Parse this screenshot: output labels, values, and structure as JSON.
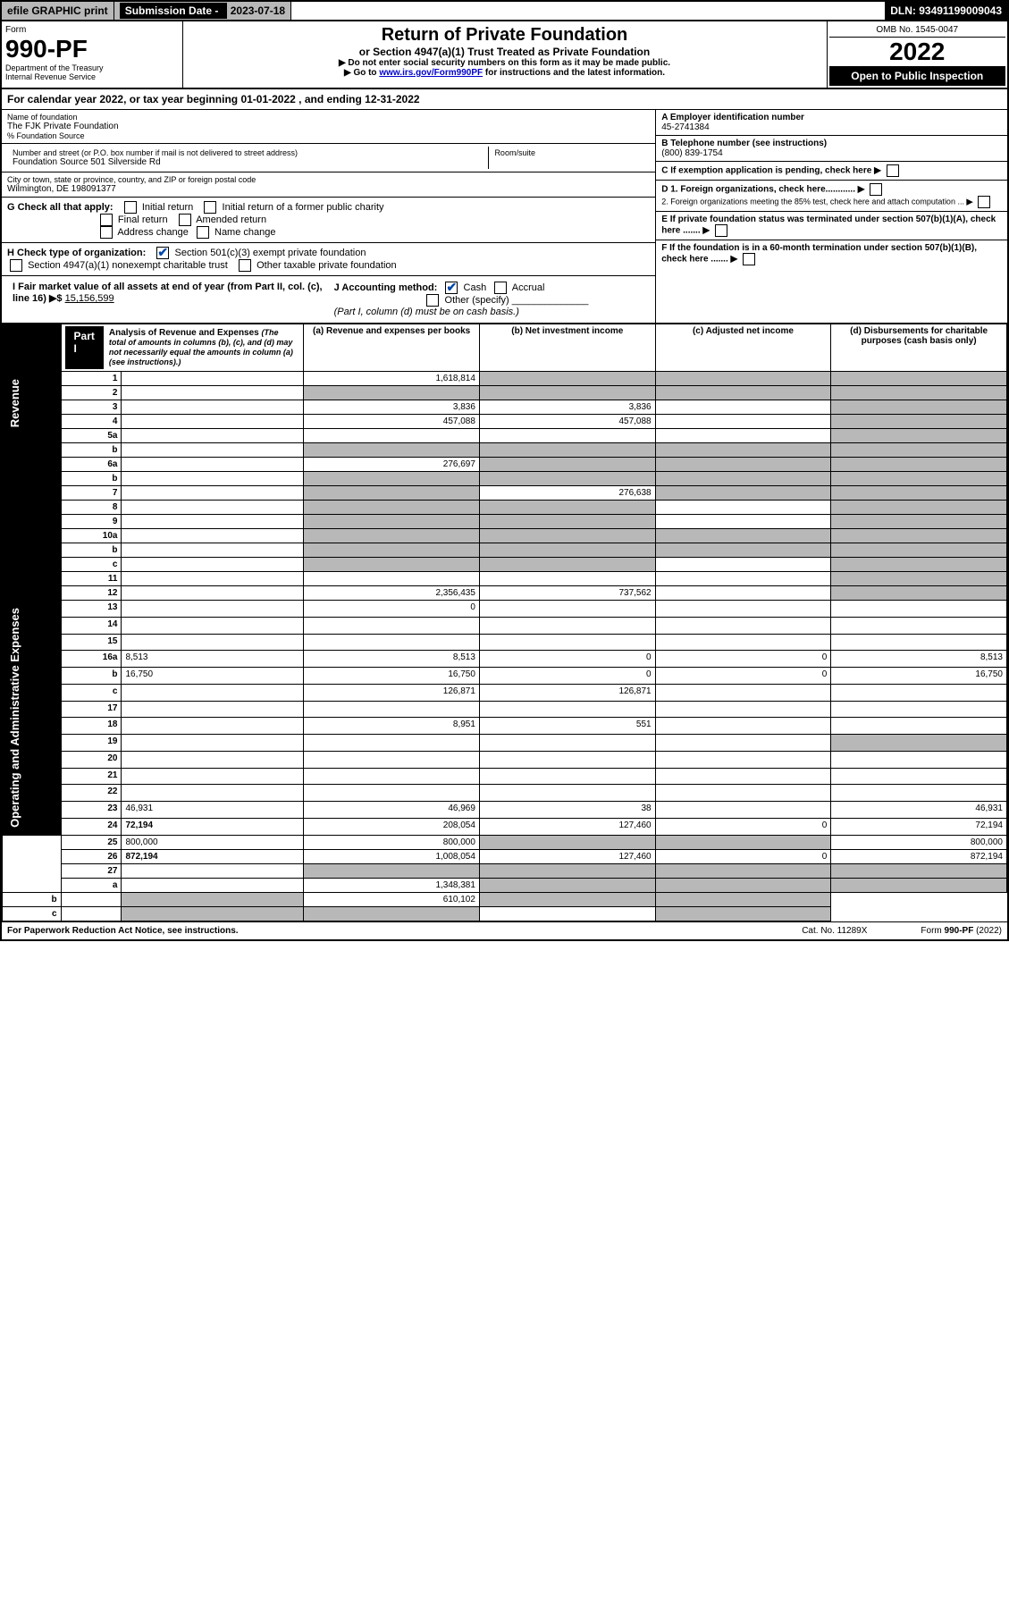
{
  "topbar": {
    "efile": "efile GRAPHIC print",
    "subdate_lbl": "Submission Date - ",
    "subdate": "2023-07-18",
    "dln": "DLN: 93491199009043"
  },
  "header": {
    "form_word": "Form",
    "form_num": "990-PF",
    "dept": "Department of the Treasury",
    "irs": "Internal Revenue Service",
    "title": "Return of Private Foundation",
    "subtitle": "or Section 4947(a)(1) Trust Treated as Private Foundation",
    "instr1": "▶ Do not enter social security numbers on this form as it may be made public.",
    "instr2_pre": "▶ Go to ",
    "instr2_link": "www.irs.gov/Form990PF",
    "instr2_post": " for instructions and the latest information.",
    "omb": "OMB No. 1545-0047",
    "year": "2022",
    "open": "Open to Public Inspection"
  },
  "cal": "For calendar year 2022, or tax year beginning 01-01-2022                , and ending 12-31-2022",
  "info": {
    "name_lbl": "Name of foundation",
    "name": "The FJK Private Foundation",
    "pct": "% Foundation Source",
    "addr_lbl": "Number and street (or P.O. box number if mail is not delivered to street address)",
    "addr": "Foundation Source 501 Silverside Rd",
    "room_lbl": "Room/suite",
    "city_lbl": "City or town, state or province, country, and ZIP or foreign postal code",
    "city": "Wilmington, DE  198091377",
    "a_lbl": "A Employer identification number",
    "a_val": "45-2741384",
    "b_lbl": "B Telephone number (see instructions)",
    "b_val": "(800) 839-1754",
    "c_lbl": "C If exemption application is pending, check here",
    "d1": "D 1. Foreign organizations, check here............",
    "d2": "2. Foreign organizations meeting the 85% test, check here and attach computation ...",
    "e": "E  If private foundation status was terminated under section 507(b)(1)(A), check here .......",
    "f": "F  If the foundation is in a 60-month termination under section 507(b)(1)(B), check here .......",
    "g_lbl": "G Check all that apply:",
    "g_opts": [
      "Initial return",
      "Final return",
      "Address change",
      "Initial return of a former public charity",
      "Amended return",
      "Name change"
    ],
    "h_lbl": "H Check type of organization:",
    "h1": "Section 501(c)(3) exempt private foundation",
    "h2": "Section 4947(a)(1) nonexempt charitable trust",
    "h3": "Other taxable private foundation",
    "i_lbl": "I Fair market value of all assets at end of year (from Part II, col. (c), line 16)",
    "i_val": "15,156,599",
    "j_lbl": "J Accounting method:",
    "j1": "Cash",
    "j2": "Accrual",
    "j3": "Other (specify)",
    "j_note": "(Part I, column (d) must be on cash basis.)"
  },
  "part1": {
    "tab": "Part I",
    "title": "Analysis of Revenue and Expenses",
    "title_note": "(The total of amounts in columns (b), (c), and (d) may not necessarily equal the amounts in column (a) (see instructions).)",
    "col_a": "(a)   Revenue and expenses per books",
    "col_b": "(b)   Net investment income",
    "col_c": "(c)   Adjusted net income",
    "col_d": "(d)  Disbursements for charitable purposes (cash basis only)",
    "side_rev": "Revenue",
    "side_exp": "Operating and Administrative Expenses",
    "rows": [
      {
        "n": "1",
        "d": "",
        "a": "1,618,814",
        "b": "",
        "c": "",
        "sb": true,
        "sc": true,
        "sd": true
      },
      {
        "n": "2",
        "d": "",
        "a": "",
        "b": "",
        "c": "",
        "sa": true,
        "sb": true,
        "sc": true,
        "sd": true
      },
      {
        "n": "3",
        "d": "",
        "a": "3,836",
        "b": "3,836",
        "c": "",
        "sd": true
      },
      {
        "n": "4",
        "d": "",
        "a": "457,088",
        "b": "457,088",
        "c": "",
        "sd": true
      },
      {
        "n": "5a",
        "d": "",
        "a": "",
        "b": "",
        "c": "",
        "sd": true
      },
      {
        "n": "b",
        "d": "",
        "a": "",
        "b": "",
        "c": "",
        "sa": true,
        "sb": true,
        "sc": true,
        "sd": true
      },
      {
        "n": "6a",
        "d": "",
        "a": "276,697",
        "b": "",
        "c": "",
        "sb": true,
        "sc": true,
        "sd": true
      },
      {
        "n": "b",
        "d": "",
        "a": "",
        "b": "",
        "c": "",
        "sa": true,
        "sb": true,
        "sc": true,
        "sd": true
      },
      {
        "n": "7",
        "d": "",
        "a": "",
        "b": "276,638",
        "c": "",
        "sa": true,
        "sc": true,
        "sd": true
      },
      {
        "n": "8",
        "d": "",
        "a": "",
        "b": "",
        "c": "",
        "sa": true,
        "sb": true,
        "sd": true
      },
      {
        "n": "9",
        "d": "",
        "a": "",
        "b": "",
        "c": "",
        "sa": true,
        "sb": true,
        "sd": true
      },
      {
        "n": "10a",
        "d": "",
        "a": "",
        "b": "",
        "c": "",
        "sa": true,
        "sb": true,
        "sc": true,
        "sd": true
      },
      {
        "n": "b",
        "d": "",
        "a": "",
        "b": "",
        "c": "",
        "sa": true,
        "sb": true,
        "sc": true,
        "sd": true
      },
      {
        "n": "c",
        "d": "",
        "a": "",
        "b": "",
        "c": "",
        "sa": true,
        "sb": true,
        "sd": true
      },
      {
        "n": "11",
        "d": "",
        "a": "",
        "b": "",
        "c": "",
        "sd": true
      },
      {
        "n": "12",
        "d": "",
        "a": "2,356,435",
        "b": "737,562",
        "c": "",
        "bold": true,
        "sd": true
      },
      {
        "n": "13",
        "d": "",
        "a": "0",
        "b": "",
        "c": ""
      },
      {
        "n": "14",
        "d": "",
        "a": "",
        "b": "",
        "c": ""
      },
      {
        "n": "15",
        "d": "",
        "a": "",
        "b": "",
        "c": ""
      },
      {
        "n": "16a",
        "d": "8,513",
        "a": "8,513",
        "b": "0",
        "c": "0"
      },
      {
        "n": "b",
        "d": "16,750",
        "a": "16,750",
        "b": "0",
        "c": "0"
      },
      {
        "n": "c",
        "d": "",
        "a": "126,871",
        "b": "126,871",
        "c": ""
      },
      {
        "n": "17",
        "d": "",
        "a": "",
        "b": "",
        "c": ""
      },
      {
        "n": "18",
        "d": "",
        "a": "8,951",
        "b": "551",
        "c": ""
      },
      {
        "n": "19",
        "d": "",
        "a": "",
        "b": "",
        "c": "",
        "sd": true
      },
      {
        "n": "20",
        "d": "",
        "a": "",
        "b": "",
        "c": ""
      },
      {
        "n": "21",
        "d": "",
        "a": "",
        "b": "",
        "c": ""
      },
      {
        "n": "22",
        "d": "",
        "a": "",
        "b": "",
        "c": ""
      },
      {
        "n": "23",
        "d": "46,931",
        "a": "46,969",
        "b": "38",
        "c": ""
      },
      {
        "n": "24",
        "d": "72,194",
        "a": "208,054",
        "b": "127,460",
        "c": "0",
        "bold": true
      },
      {
        "n": "25",
        "d": "800,000",
        "a": "800,000",
        "b": "",
        "c": "",
        "sb": true,
        "sc": true
      },
      {
        "n": "26",
        "d": "872,194",
        "a": "1,008,054",
        "b": "127,460",
        "c": "0",
        "bold": true
      },
      {
        "n": "27",
        "d": "",
        "a": "",
        "b": "",
        "c": "",
        "sa": true,
        "sb": true,
        "sc": true,
        "sd": true
      },
      {
        "n": "a",
        "d": "",
        "a": "1,348,381",
        "b": "",
        "c": "",
        "bold": true,
        "sb": true,
        "sc": true,
        "sd": true
      },
      {
        "n": "b",
        "d": "",
        "a": "",
        "b": "610,102",
        "c": "",
        "bold": true,
        "sa": true,
        "sc": true,
        "sd": true
      },
      {
        "n": "c",
        "d": "",
        "a": "",
        "b": "",
        "c": "",
        "bold": true,
        "sa": true,
        "sb": true,
        "sd": true
      }
    ]
  },
  "footer": {
    "left": "For Paperwork Reduction Act Notice, see instructions.",
    "mid": "Cat. No. 11289X",
    "right": "Form 990-PF (2022)"
  },
  "colors": {
    "shaded": "#b8b8b8",
    "link": "#0000cc",
    "check_blue": "#0047ab"
  }
}
